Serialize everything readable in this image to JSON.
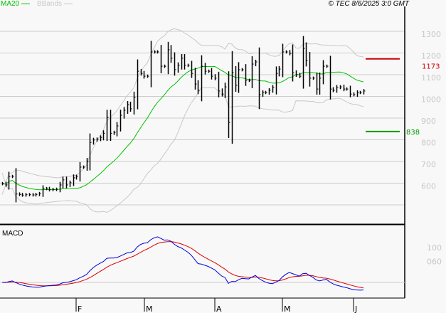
{
  "header": {
    "legend_ma20": "MA20",
    "legend_bbands": "BBands",
    "copyright": "© TEC 8/6/2025 3:0 GMT"
  },
  "colors": {
    "bars": "#000000",
    "ma20": "#00c000",
    "bbands": "#c8c8c8",
    "macd": "#0000dd",
    "signal": "#dd0000",
    "resistance": "#cc0000",
    "support": "#009900",
    "grid": "#cccccc"
  },
  "chart_data": [
    {
      "type": "ohlc-bar",
      "title": "",
      "yticks": [
        "1300",
        "1200",
        "1100",
        "1000",
        "900",
        "800",
        "700",
        "600"
      ],
      "ytick_values": [
        1300,
        1200,
        1100,
        1000,
        900,
        800,
        700,
        600
      ],
      "ylim": [
        500,
        1345
      ],
      "x_month_labels": [
        "F",
        "M",
        "A",
        "M",
        "J"
      ],
      "grid": true,
      "indicators": [
        "MA20",
        "BBands"
      ],
      "close": [
        598,
        592,
        631,
        631,
        550,
        548,
        545,
        547,
        547,
        546,
        548,
        552,
        575,
        575,
        570,
        571,
        572,
        592,
        615,
        592,
        602,
        625,
        631,
        674,
        674,
        700,
        788,
        799,
        803,
        811,
        830,
        903,
        830,
        834,
        864,
        913,
        936,
        962,
        943,
        995,
        1116,
        1106,
        1093,
        1093,
        1205,
        1205,
        1205,
        1139,
        1139,
        1215,
        1176,
        1123,
        1143,
        1176,
        1143,
        1143,
        1106,
        1057,
        1028,
        1139,
        1116,
        1116,
        1093,
        1084,
        1025,
        1011,
        1044,
        880,
        1110,
        1051,
        1123,
        1123,
        1074,
        1074,
        1149,
        1159,
        1008,
        1018,
        1018,
        1028,
        1041,
        1106,
        1126,
        1205,
        1205,
        1198,
        1110,
        1100,
        1093,
        1221,
        1166,
        1084,
        1084,
        1034,
        1084,
        1139,
        1139,
        1034,
        1028,
        1041,
        1044,
        1034,
        1034,
        1011,
        1008,
        1018,
        1018,
        1025
      ],
      "levels": [
        {
          "label": "1173",
          "value": 1173,
          "kind": "resistance"
        },
        {
          "label": "838",
          "value": 838,
          "kind": "support"
        }
      ]
    },
    {
      "type": "line",
      "title": "MACD",
      "yticks": [
        "100",
        "060"
      ],
      "ytick_values": [
        100,
        60
      ],
      "series": [
        "MACD",
        "signal"
      ]
    }
  ]
}
